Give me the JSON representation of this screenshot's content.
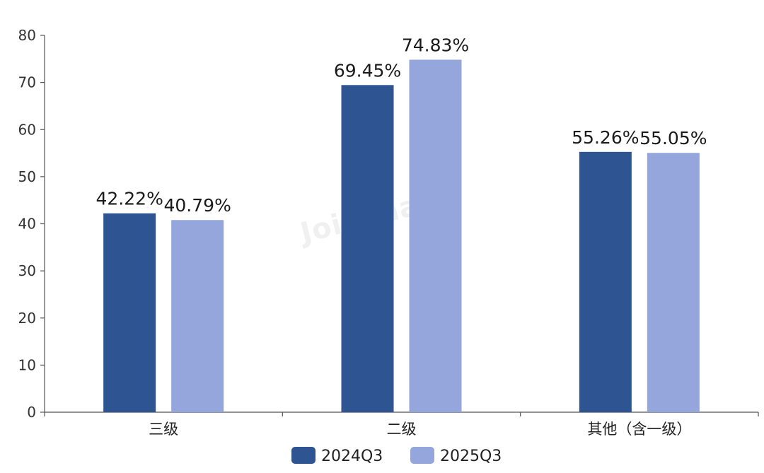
{
  "chart_data": {
    "type": "bar",
    "categories": [
      "三级",
      "二级",
      "其他（含一级）"
    ],
    "series": [
      {
        "name": "2024Q3",
        "values": [
          42.22,
          69.45,
          55.26
        ],
        "labels": [
          "42.22%",
          "69.45%",
          "55.26%"
        ],
        "color": "#2e5491"
      },
      {
        "name": "2025Q3",
        "values": [
          40.79,
          74.83,
          55.05
        ],
        "labels": [
          "40.79%",
          "74.83%",
          "55.05%"
        ],
        "color": "#94a6db"
      }
    ],
    "ylim": [
      0,
      80
    ],
    "yticks": [
      0,
      10,
      20,
      30,
      40,
      50,
      60,
      70,
      80
    ],
    "grid": false,
    "legend_position": "bottom-center"
  },
  "watermark": "Joinchain"
}
